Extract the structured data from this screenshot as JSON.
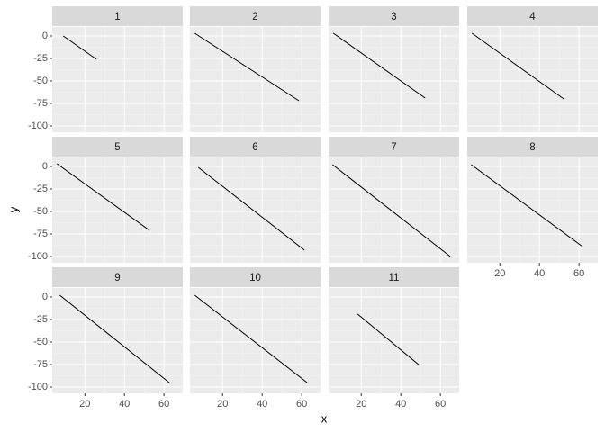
{
  "chart_data": {
    "type": "line",
    "xlabel": "x",
    "ylabel": "y",
    "color": "#000000",
    "xlim": [
      3.5,
      69.5
    ],
    "ylim": [
      -107,
      10
    ],
    "xticks": [
      20,
      40,
      60
    ],
    "yticks": [
      0,
      -25,
      -50,
      -75,
      -100
    ],
    "grid": true,
    "series": [
      {
        "name": "1",
        "x": [
          9.1,
          25.9
        ],
        "values": [
          0,
          -26
        ]
      },
      {
        "name": "2",
        "x": [
          5.9,
          58.6
        ],
        "values": [
          3,
          -72
        ]
      },
      {
        "name": "3",
        "x": [
          5.9,
          52.3
        ],
        "values": [
          3,
          -69
        ]
      },
      {
        "name": "4",
        "x": [
          5.9,
          52.3
        ],
        "values": [
          3,
          -70
        ]
      },
      {
        "name": "5",
        "x": [
          5.9,
          52.7
        ],
        "values": [
          3,
          -71
        ]
      },
      {
        "name": "6",
        "x": [
          7.7,
          61.4
        ],
        "values": [
          -1,
          -93
        ]
      },
      {
        "name": "7",
        "x": [
          5.5,
          65
        ],
        "values": [
          2,
          -100
        ]
      },
      {
        "name": "8",
        "x": [
          5.5,
          61.8
        ],
        "values": [
          2,
          -89
        ]
      },
      {
        "name": "9",
        "x": [
          7.3,
          63.2
        ],
        "values": [
          2,
          -96
        ]
      },
      {
        "name": "10",
        "x": [
          5.9,
          62.7
        ],
        "values": [
          2,
          -95
        ]
      },
      {
        "name": "11",
        "x": [
          18.2,
          49.5
        ],
        "values": [
          -19,
          -76
        ]
      }
    ]
  }
}
